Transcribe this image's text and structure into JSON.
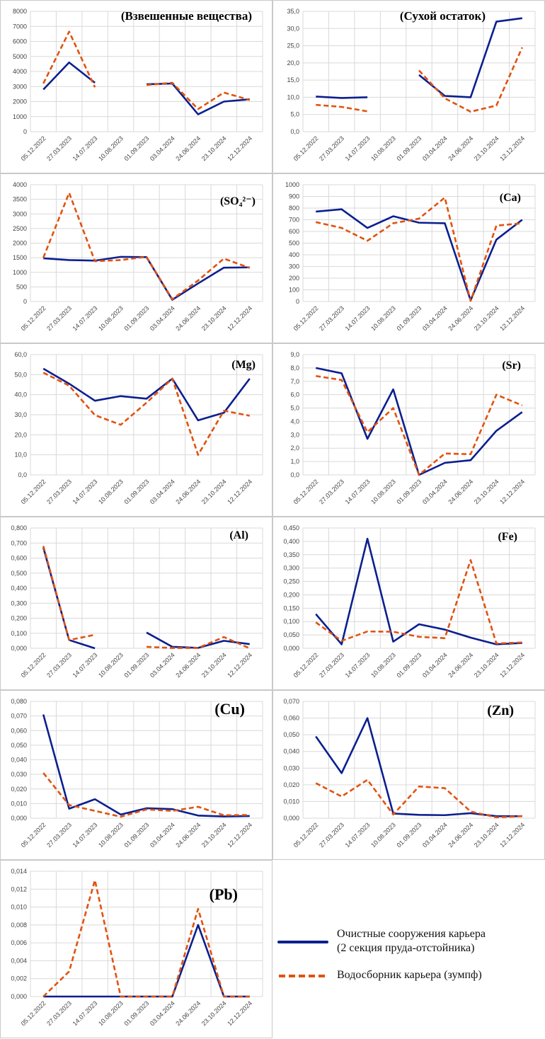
{
  "colors": {
    "series_solid": "#0b1f8f",
    "series_dashed": "#e0530f",
    "grid": "#d9d9d9",
    "axis_text": "#444444"
  },
  "legend": {
    "items": [
      {
        "label_line1": "Очистные сооружения карьера",
        "label_line2": "(2 секция пруда-отстойника)",
        "style": "solid"
      },
      {
        "label_line1": "Водосборник карьера (зумпф)",
        "label_line2": "",
        "style": "dashed"
      }
    ]
  },
  "chart_data": [
    {
      "type": "line",
      "title": "(Взвешенные вещества)",
      "categories": [
        "05.12.2022",
        "27.03.2023",
        "14.07.2023",
        "10.08.2023",
        "01.09.2023",
        "03.04.2024",
        "24.06.2024",
        "23.10.2024",
        "12.12.2024"
      ],
      "yticks": [
        "0",
        "1000",
        "2000",
        "3000",
        "4000",
        "5000",
        "6000",
        "7000",
        "8000"
      ],
      "ylim": [
        0,
        8000
      ],
      "grid": true,
      "series": [
        {
          "name": "Очистные сооружения карьера (2 секция пруда-отстойника)",
          "style": "solid",
          "values": [
            2800,
            4600,
            3250,
            null,
            3150,
            3200,
            1150,
            2000,
            2150
          ]
        },
        {
          "name": "Водосборник карьера (зумпф)",
          "style": "dashed",
          "values": [
            3200,
            6650,
            2950,
            null,
            3100,
            3250,
            1500,
            2600,
            2100
          ]
        }
      ]
    },
    {
      "type": "line",
      "title": "(Сухой остаток)",
      "categories": [
        "05.12.2022",
        "27.03.2023",
        "14.07.2023",
        "10.08.2023",
        "01.09.2023",
        "03.04.2024",
        "24.06.2024",
        "23.10.2024",
        "12.12.2024"
      ],
      "yticks": [
        "0,0",
        "5,0",
        "10,0",
        "15,0",
        "20,0",
        "25,0",
        "30,0",
        "35,0"
      ],
      "ylim": [
        0,
        35
      ],
      "grid": true,
      "series": [
        {
          "name": "Очистные сооружения карьера (2 секция пруда-отстойника)",
          "style": "solid",
          "values": [
            10.2,
            9.8,
            10.0,
            null,
            16.5,
            10.4,
            10.0,
            32.0,
            33.0
          ]
        },
        {
          "name": "Водосборник карьера (зумпф)",
          "style": "dashed",
          "values": [
            7.8,
            7.2,
            5.9,
            null,
            17.8,
            9.7,
            5.8,
            7.6,
            24.5
          ]
        }
      ]
    },
    {
      "type": "line",
      "title": "(SO₄²⁻)",
      "categories": [
        "05.12.2022",
        "27.03.2023",
        "14.07.2023",
        "10.08.2023",
        "01.09.2023",
        "03.04.2024",
        "24.06.2024",
        "23.10.2024",
        "12.12.2024"
      ],
      "yticks": [
        "0",
        "500",
        "1000",
        "1500",
        "2000",
        "2500",
        "3000",
        "3500",
        "4000"
      ],
      "ylim": [
        0,
        4000
      ],
      "grid": true,
      "series": [
        {
          "name": "Очистные сооружения карьера (2 секция пруда-отстойника)",
          "style": "solid",
          "values": [
            1480,
            1420,
            1400,
            1530,
            1520,
            60,
            620,
            1160,
            1170
          ]
        },
        {
          "name": "Водосборник карьера (зумпф)",
          "style": "dashed",
          "values": [
            1500,
            3720,
            1380,
            1420,
            1530,
            80,
            720,
            1470,
            1150
          ]
        }
      ]
    },
    {
      "type": "line",
      "title": "(Ca)",
      "categories": [
        "05.12.2022",
        "27.03.2023",
        "14.07.2023",
        "10.08.2023",
        "01.09.2023",
        "03.04.2024",
        "24.06.2024",
        "23.10.2024",
        "12.12.2024"
      ],
      "yticks": [
        "0",
        "100",
        "200",
        "300",
        "400",
        "500",
        "600",
        "700",
        "800",
        "900",
        "1000"
      ],
      "ylim": [
        0,
        1000
      ],
      "grid": true,
      "series": [
        {
          "name": "Очистные сооружения карьера (2 секция пруда-отстойника)",
          "style": "solid",
          "values": [
            770,
            790,
            630,
            730,
            675,
            670,
            10,
            530,
            700
          ]
        },
        {
          "name": "Водосборник карьера (зумпф)",
          "style": "dashed",
          "values": [
            680,
            630,
            520,
            670,
            710,
            890,
            5,
            650,
            670
          ]
        }
      ]
    },
    {
      "type": "line",
      "title": "(Mg)",
      "categories": [
        "05.12.2022",
        "27.03.2023",
        "14.07.2023",
        "10.08.2023",
        "01.09.2023",
        "03.04.2024",
        "24.06.2024",
        "23.10.2024",
        "12.12.2024"
      ],
      "yticks": [
        "0,0",
        "10,0",
        "20,0",
        "30,0",
        "40,0",
        "50,0",
        "60,0"
      ],
      "ylim": [
        0,
        60
      ],
      "grid": true,
      "series": [
        {
          "name": "Очистные сооружения карьера (2 секция пруда-отстойника)",
          "style": "solid",
          "values": [
            53.0,
            45.5,
            37.0,
            39.3,
            38.0,
            48.0,
            27.2,
            31.0,
            48.0
          ]
        },
        {
          "name": "Водосборник карьера (зумпф)",
          "style": "dashed",
          "values": [
            51.0,
            44.5,
            29.8,
            25.0,
            36.0,
            48.0,
            10.0,
            32.0,
            29.5
          ]
        }
      ]
    },
    {
      "type": "line",
      "title": "(Sr)",
      "categories": [
        "05.12.2022",
        "27.03.2023",
        "14.07.2023",
        "10.08.2023",
        "01.09.2023",
        "03.04.2024",
        "24.06.2024",
        "23.10.2024",
        "12.12.2024"
      ],
      "yticks": [
        "0,0",
        "1,0",
        "2,0",
        "3,0",
        "4,0",
        "5,0",
        "6,0",
        "7,0",
        "8,0",
        "9,0"
      ],
      "ylim": [
        0,
        9
      ],
      "grid": true,
      "series": [
        {
          "name": "Очистные сооружения карьера (2 секция пруда-отстойника)",
          "style": "solid",
          "values": [
            8.0,
            7.6,
            2.7,
            6.4,
            0.0,
            0.9,
            1.1,
            3.3,
            4.7
          ]
        },
        {
          "name": "Водосборник карьера (зумпф)",
          "style": "dashed",
          "values": [
            7.4,
            7.1,
            3.2,
            5.0,
            0.0,
            1.6,
            1.55,
            6.0,
            5.2
          ]
        }
      ]
    },
    {
      "type": "line",
      "title": "(Al)",
      "categories": [
        "05.12.2022",
        "27.03.2023",
        "14.07.2023",
        "10.08.2023",
        "01.09.2023",
        "03.04.2024",
        "24.06.2024",
        "23.10.2024",
        "12.12.2024"
      ],
      "yticks": [
        "0,000",
        "0,100",
        "0,200",
        "0,300",
        "0,400",
        "0,500",
        "0,600",
        "0,700",
        "0,800"
      ],
      "ylim": [
        0,
        0.8
      ],
      "grid": true,
      "series": [
        {
          "name": "Очистные сооружения карьера (2 секция пруда-отстойника)",
          "style": "solid",
          "values": [
            0.67,
            0.055,
            0.0,
            null,
            0.105,
            0.01,
            0.003,
            0.05,
            0.028
          ]
        },
        {
          "name": "Водосборник карьера (зумпф)",
          "style": "dashed",
          "values": [
            0.68,
            0.055,
            0.09,
            null,
            0.01,
            0.002,
            0.002,
            0.075,
            0.0
          ]
        }
      ]
    },
    {
      "type": "line",
      "title": "(Fe)",
      "categories": [
        "05.12.2022",
        "27.03.2023",
        "14.07.2023",
        "10.08.2023",
        "01.09.2023",
        "03.04.2024",
        "24.06.2024",
        "23.10.2024",
        "12.12.2024"
      ],
      "yticks": [
        "0,000",
        "0,050",
        "0,100",
        "0,150",
        "0,200",
        "0,250",
        "0,300",
        "0,350",
        "0,400",
        "0,450"
      ],
      "ylim": [
        0,
        0.45
      ],
      "grid": true,
      "series": [
        {
          "name": "Очистные сооружения карьера (2 секция пруда-отстойника)",
          "style": "solid",
          "values": [
            0.128,
            0.015,
            0.41,
            0.025,
            0.09,
            0.07,
            0.04,
            0.015,
            0.02
          ]
        },
        {
          "name": "Водосборник карьера (зумпф)",
          "style": "dashed",
          "values": [
            0.097,
            0.028,
            0.063,
            0.062,
            0.043,
            0.038,
            0.33,
            0.018,
            0.022
          ]
        }
      ]
    },
    {
      "type": "line",
      "title": "(Cu)",
      "categories": [
        "05.12.2022",
        "27.03.2023",
        "14.07.2023",
        "10.08.2023",
        "01.09.2023",
        "03.04.2024",
        "24.06.2024",
        "23.10.2024",
        "12.12.2024"
      ],
      "yticks": [
        "0,000",
        "0,010",
        "0,020",
        "0,030",
        "0,040",
        "0,050",
        "0,060",
        "0,070",
        "0,080"
      ],
      "ylim": [
        0,
        0.08
      ],
      "grid": true,
      "series": [
        {
          "name": "Очистные сооружения карьера (2 секция пруда-отстойника)",
          "style": "solid",
          "values": [
            0.071,
            0.0065,
            0.013,
            0.0025,
            0.0068,
            0.0062,
            0.0018,
            0.0012,
            0.0015
          ]
        },
        {
          "name": "Водосборник карьера (зумпф)",
          "style": "dashed",
          "values": [
            0.031,
            0.009,
            0.005,
            0.001,
            0.006,
            0.005,
            0.0078,
            0.002,
            0.0022
          ]
        }
      ]
    },
    {
      "type": "line",
      "title": "(Zn)",
      "categories": [
        "05.12.2022",
        "27.03.2023",
        "14.07.2023",
        "10.08.2023",
        "01.09.2023",
        "03.04.2024",
        "24.06.2024",
        "23.10.2024",
        "12.12.2024"
      ],
      "yticks": [
        "0,000",
        "0,010",
        "0,020",
        "0,030",
        "0,040",
        "0,050",
        "0,060",
        "0,070"
      ],
      "ylim": [
        0,
        0.07
      ],
      "grid": true,
      "series": [
        {
          "name": "Очистные сооружения карьера (2 секция пруда-отстойника)",
          "style": "solid",
          "values": [
            0.049,
            0.027,
            0.06,
            0.0028,
            0.002,
            0.0018,
            0.003,
            0.0012,
            0.0012
          ]
        },
        {
          "name": "Водосборник карьера (зумпф)",
          "style": "dashed",
          "values": [
            0.021,
            0.013,
            0.023,
            0.0022,
            0.019,
            0.018,
            0.004,
            0.0005,
            0.0012
          ]
        }
      ]
    },
    {
      "type": "line",
      "title": "(Pb)",
      "categories": [
        "05.12.2022",
        "27.03.2023",
        "14.07.2023",
        "10.08.2023",
        "01.09.2023",
        "03.04.2024",
        "24.06.2024",
        "23.10.2024",
        "12.12.2024"
      ],
      "yticks": [
        "0,000",
        "0,002",
        "0,004",
        "0,006",
        "0,008",
        "0,010",
        "0,012",
        "0,014"
      ],
      "ylim": [
        0,
        0.014
      ],
      "grid": true,
      "series": [
        {
          "name": "Очистные сооружения карьера (2 секция пруда-отстойника)",
          "style": "solid",
          "values": [
            0,
            0,
            0,
            0,
            0,
            0,
            0.008,
            0,
            0
          ]
        },
        {
          "name": "Водосборник карьера (зумпф)",
          "style": "dashed",
          "values": [
            0,
            0.0028,
            0.013,
            0,
            0,
            0,
            0.0098,
            0,
            0
          ]
        }
      ]
    }
  ]
}
